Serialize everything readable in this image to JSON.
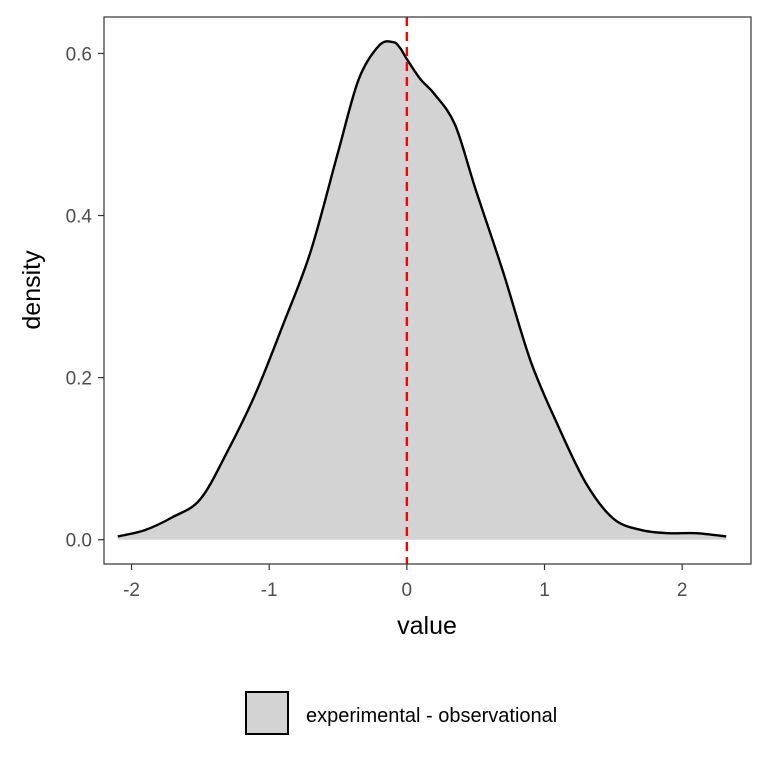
{
  "chart_data": {
    "type": "area",
    "title": "",
    "xlabel": "value",
    "ylabel": "density",
    "xlim": [
      -2.2,
      2.5
    ],
    "ylim": [
      -0.03,
      0.645
    ],
    "x_ticks": [
      -2,
      -1,
      0,
      1,
      2
    ],
    "x_tick_labels": [
      "-2",
      "-1",
      "0",
      "1",
      "2"
    ],
    "y_ticks": [
      0.0,
      0.2,
      0.4,
      0.6
    ],
    "y_tick_labels": [
      "0.0",
      "0.2",
      "0.4",
      "0.6"
    ],
    "grid": false,
    "legend_position": "bottom",
    "series": [
      {
        "name": "experimental - observational",
        "fill": "#d3d3d3",
        "line_color": "#000000",
        "x": [
          -2.1,
          -1.9,
          -1.7,
          -1.5,
          -1.3,
          -1.1,
          -0.9,
          -0.7,
          -0.5,
          -0.35,
          -0.2,
          -0.1,
          -0.05,
          0.0,
          0.1,
          0.2,
          0.35,
          0.5,
          0.7,
          0.9,
          1.1,
          1.3,
          1.5,
          1.7,
          1.9,
          2.1,
          2.32
        ],
        "y": [
          0.004,
          0.012,
          0.028,
          0.05,
          0.11,
          0.18,
          0.265,
          0.355,
          0.478,
          0.568,
          0.61,
          0.614,
          0.607,
          0.593,
          0.568,
          0.55,
          0.512,
          0.432,
          0.33,
          0.22,
          0.14,
          0.07,
          0.026,
          0.012,
          0.008,
          0.008,
          0.004
        ]
      }
    ],
    "reference_lines": [
      {
        "axis": "x",
        "value": 0,
        "color": "#ff0000",
        "style": "dashed"
      }
    ],
    "legend": {
      "entries": [
        "experimental - observational"
      ]
    }
  }
}
